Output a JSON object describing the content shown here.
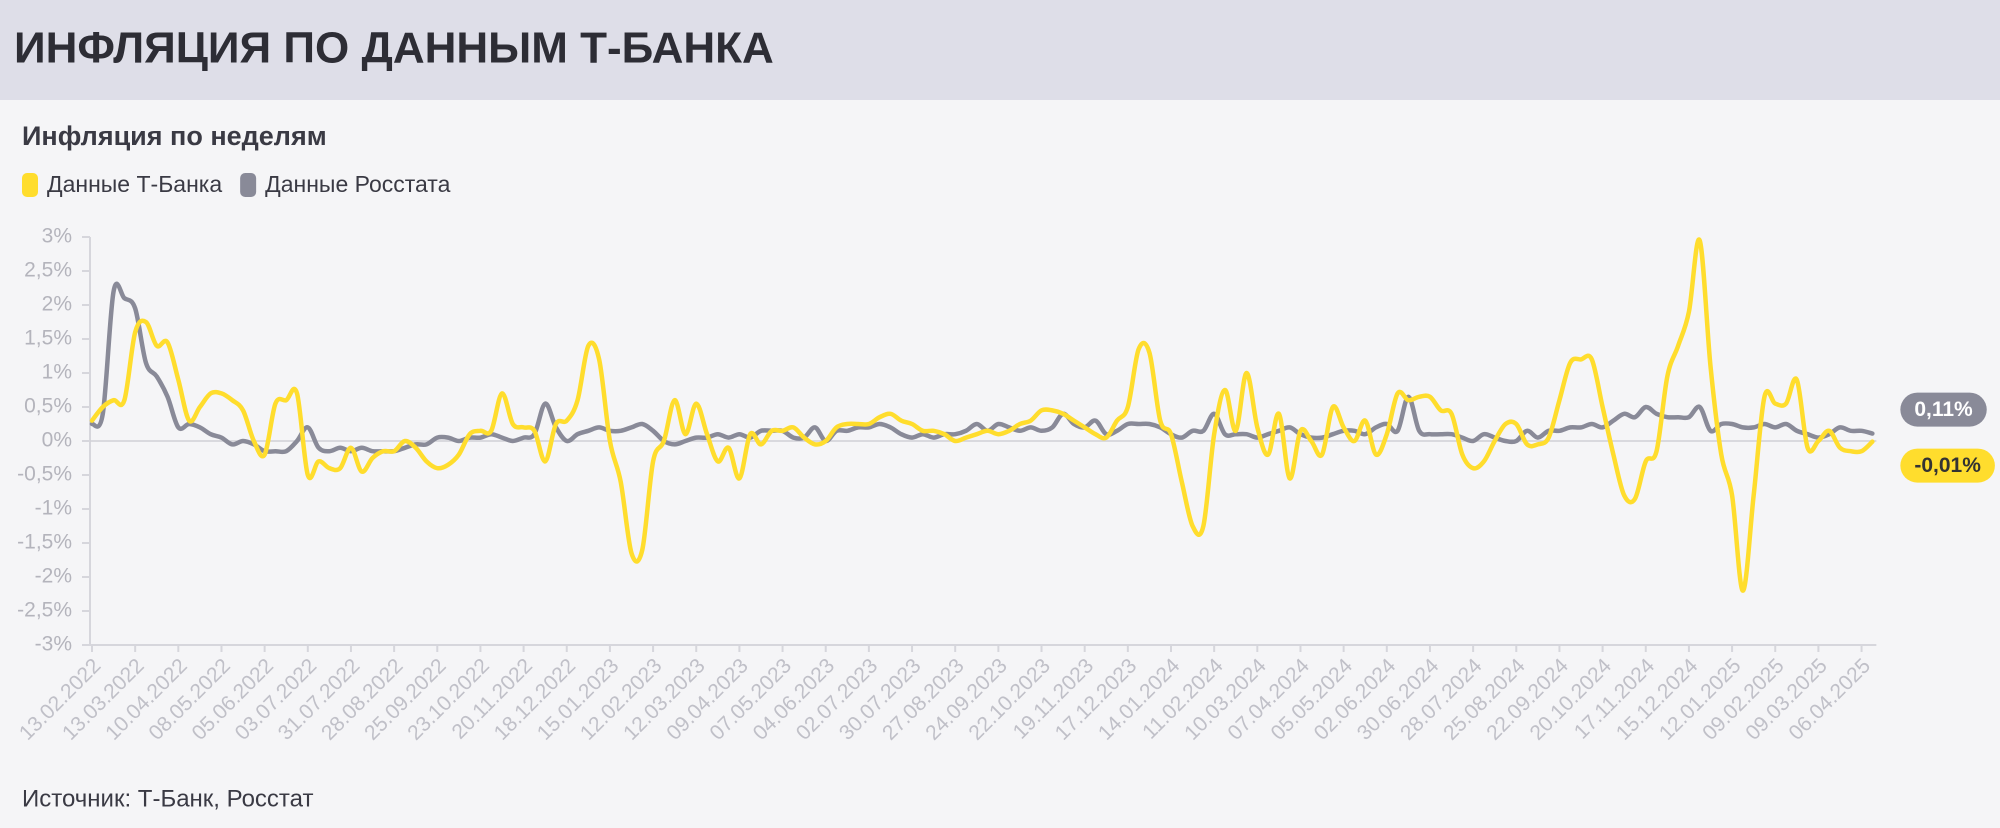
{
  "header": {
    "title": "ИНФЛЯЦИЯ ПО ДАННЫМ Т-БАНКА"
  },
  "chart_data": {
    "type": "line",
    "title": "Инфляция по неделям",
    "source": "Источник: Т-Банк, Росстат",
    "ylim": [
      -3,
      3
    ],
    "yticks": [
      {
        "value": -3,
        "label": "-3%"
      },
      {
        "value": -2.5,
        "label": "-2,5%"
      },
      {
        "value": -2,
        "label": "-2%"
      },
      {
        "value": -1.5,
        "label": "-1,5%"
      },
      {
        "value": -1,
        "label": "-1%"
      },
      {
        "value": -0.5,
        "label": "-0,5%"
      },
      {
        "value": 0,
        "label": "0%"
      },
      {
        "value": 0.5,
        "label": "0,5%"
      },
      {
        "value": 1,
        "label": "1%"
      },
      {
        "value": 1.5,
        "label": "1,5%"
      },
      {
        "value": 2,
        "label": "2%"
      },
      {
        "value": 2.5,
        "label": "2,5%"
      },
      {
        "value": 3,
        "label": "3%"
      }
    ],
    "grid": false,
    "legend": "top-left",
    "categories": [
      "13.02.2022",
      null,
      null,
      null,
      "13.03.2022",
      null,
      null,
      null,
      "10.04.2022",
      null,
      null,
      null,
      "08.05.2022",
      null,
      null,
      null,
      "05.06.2022",
      null,
      null,
      null,
      "03.07.2022",
      null,
      null,
      null,
      "31.07.2022",
      null,
      null,
      null,
      "28.08.2022",
      null,
      null,
      null,
      "25.09.2022",
      null,
      null,
      null,
      "23.10.2022",
      null,
      null,
      null,
      "20.11.2022",
      null,
      null,
      null,
      "18.12.2022",
      null,
      null,
      null,
      "15.01.2023",
      null,
      null,
      null,
      "12.02.2023",
      null,
      null,
      null,
      "12.03.2023",
      null,
      null,
      null,
      "09.04.2023",
      null,
      null,
      null,
      "07.05.2023",
      null,
      null,
      null,
      "04.06.2023",
      null,
      null,
      null,
      "02.07.2023",
      null,
      null,
      null,
      "30.07.2023",
      null,
      null,
      null,
      "27.08.2023",
      null,
      null,
      null,
      "24.09.2023",
      null,
      null,
      null,
      "22.10.2023",
      null,
      null,
      null,
      "19.11.2023",
      null,
      null,
      null,
      "17.12.2023",
      null,
      null,
      null,
      "14.01.2024",
      null,
      null,
      null,
      "11.02.2024",
      null,
      null,
      null,
      "10.03.2024",
      null,
      null,
      null,
      "07.04.2024",
      null,
      null,
      null,
      "05.05.2024",
      null,
      null,
      null,
      "02.06.2024",
      null,
      null,
      null,
      "30.06.2024",
      null,
      null,
      null,
      "28.07.2024",
      null,
      null,
      null,
      "25.08.2024",
      null,
      null,
      null,
      "22.09.2024",
      null,
      null,
      null,
      "20.10.2024",
      null,
      null,
      null,
      "17.11.2024",
      null,
      null,
      null,
      "15.12.2024",
      null,
      null,
      null,
      "12.01.2025",
      null,
      null,
      null,
      "09.02.2025",
      null,
      null,
      null,
      "09.03.2025",
      null,
      null,
      null,
      "06.04.2025",
      null
    ],
    "series": [
      {
        "name": "Данные Т-Банка",
        "color": "#ffdd2d",
        "label_text_color": "#333333",
        "values": [
          0.3,
          0.5,
          0.6,
          0.6,
          1.6,
          1.75,
          1.4,
          1.45,
          0.9,
          0.3,
          0.5,
          0.7,
          0.7,
          0.6,
          0.45,
          0,
          -0.2,
          0.55,
          0.6,
          0.7,
          -0.5,
          -0.3,
          -0.4,
          -0.4,
          -0.1,
          -0.45,
          -0.25,
          -0.15,
          -0.15,
          0,
          -0.1,
          -0.3,
          -0.4,
          -0.35,
          -0.2,
          0.1,
          0.15,
          0.15,
          0.7,
          0.25,
          0.2,
          0.15,
          -0.3,
          0.25,
          0.3,
          0.6,
          1.4,
          1.2,
          0,
          -0.6,
          -1.65,
          -1.6,
          -0.3,
          0,
          0.6,
          0.1,
          0.55,
          0.1,
          -0.3,
          -0.1,
          -0.55,
          0.1,
          -0.05,
          0.15,
          0.15,
          0.2,
          0.05,
          -0.05,
          0,
          0.2,
          0.25,
          0.25,
          0.25,
          0.35,
          0.4,
          0.3,
          0.25,
          0.15,
          0.15,
          0.1,
          0,
          0.05,
          0.1,
          0.15,
          0.1,
          0.15,
          0.25,
          0.3,
          0.45,
          0.45,
          0.4,
          0.3,
          0.2,
          0.1,
          0.05,
          0.3,
          0.5,
          1.35,
          1.3,
          0.3,
          0.1,
          -0.6,
          -1.25,
          -1.25,
          0.1,
          0.75,
          0.15,
          1,
          0.2,
          -0.2,
          0.4,
          -0.55,
          0.15,
          0,
          -0.2,
          0.5,
          0.2,
          0,
          0.3,
          -0.2,
          0.1,
          0.7,
          0.6,
          0.65,
          0.65,
          0.45,
          0.4,
          -0.2,
          -0.4,
          -0.3,
          0,
          0.25,
          0.25,
          -0.05,
          -0.05,
          0.05,
          0.6,
          1.15,
          1.2,
          1.2,
          0.5,
          -0.2,
          -0.8,
          -0.85,
          -0.3,
          -0.15,
          0.95,
          1.4,
          1.9,
          2.95,
          1.1,
          -0.2,
          -0.8,
          -2.2,
          -0.8,
          0.65,
          0.55,
          0.55,
          0.9,
          -0.1,
          0,
          0.15,
          -0.1,
          -0.15,
          -0.15,
          -0.01
        ],
        "value_labels": [
          null,
          null,
          null,
          null,
          null,
          null,
          null,
          null,
          null,
          null,
          null,
          null,
          null,
          null,
          null,
          null,
          null,
          null,
          null,
          null,
          null,
          null,
          null,
          null,
          null,
          null,
          null,
          null,
          null,
          null,
          null,
          null,
          null,
          null,
          null,
          null,
          null,
          null,
          null,
          null,
          null,
          null,
          null,
          null,
          null,
          null,
          null,
          null,
          null,
          null,
          null,
          null,
          null,
          null,
          null,
          null,
          null,
          null,
          null,
          null,
          null,
          null,
          null,
          null,
          null,
          null,
          null,
          null,
          null,
          null,
          null,
          null,
          null,
          null,
          null,
          null,
          null,
          null,
          null,
          null,
          null,
          null,
          null,
          null,
          null,
          null,
          null,
          null,
          null,
          null,
          null,
          null,
          null,
          null,
          null,
          null,
          null,
          null,
          null,
          null,
          null,
          null,
          null,
          null,
          null,
          null,
          null,
          null,
          null,
          null,
          null,
          null,
          null,
          null,
          null,
          null,
          null,
          null,
          null,
          null,
          null,
          null,
          null,
          null,
          null,
          null,
          null,
          null,
          null,
          null,
          null,
          null,
          null,
          null,
          null,
          null,
          null,
          null,
          null,
          null,
          null,
          null,
          null,
          null,
          null,
          null,
          null,
          null,
          null,
          null,
          null,
          null,
          null,
          null,
          null,
          null,
          null,
          null,
          null,
          null,
          null,
          null,
          null,
          null,
          null,
          "-0,01%"
        ]
      },
      {
        "name": "Данные Росстата",
        "color": "#898a98",
        "label_text_color": "#ffffff",
        "values": [
          0.25,
          0.4,
          2.2,
          2.1,
          1.95,
          1.15,
          0.95,
          0.65,
          0.2,
          0.25,
          0.2,
          0.1,
          0.05,
          -0.05,
          0,
          -0.05,
          -0.15,
          -0.15,
          -0.15,
          0,
          0.2,
          -0.1,
          -0.15,
          -0.1,
          -0.15,
          -0.1,
          -0.15,
          -0.15,
          -0.15,
          -0.1,
          -0.05,
          -0.05,
          0.05,
          0.05,
          0,
          0.05,
          0.05,
          0.1,
          0.05,
          0,
          0.05,
          0.1,
          0.55,
          0.2,
          0,
          0.1,
          0.15,
          0.2,
          0.15,
          0.15,
          0.2,
          0.25,
          0.15,
          0,
          -0.05,
          0,
          0.05,
          0.05,
          0.1,
          0.05,
          0.1,
          0.05,
          0.15,
          0.15,
          0.15,
          0.05,
          0.05,
          0.2,
          0,
          0.15,
          0.15,
          0.2,
          0.2,
          0.25,
          0.2,
          0.1,
          0.05,
          0.1,
          0.05,
          0.1,
          0.1,
          0.15,
          0.25,
          0.15,
          0.25,
          0.2,
          0.15,
          0.2,
          0.15,
          0.2,
          0.4,
          0.25,
          0.2,
          0.3,
          0.1,
          0.15,
          0.25,
          0.25,
          0.25,
          0.2,
          0.1,
          0.05,
          0.15,
          0.15,
          0.4,
          0.1,
          0.1,
          0.1,
          0.05,
          0.1,
          0.15,
          0.2,
          0.1,
          0.05,
          0.05,
          0.1,
          0.15,
          0.15,
          0.1,
          0.2,
          0.25,
          0.15,
          0.65,
          0.15,
          0.1,
          0.1,
          0.1,
          0.05,
          0,
          0.1,
          0.05,
          0,
          0,
          0.15,
          0.05,
          0.15,
          0.15,
          0.2,
          0.2,
          0.25,
          0.2,
          0.3,
          0.4,
          0.35,
          0.5,
          0.4,
          0.35,
          0.35,
          0.35,
          0.5,
          0.15,
          0.25,
          0.25,
          0.2,
          0.2,
          0.25,
          0.2,
          0.25,
          0.15,
          0.1,
          0.05,
          0.1,
          0.2,
          0.15,
          0.15,
          0.11
        ],
        "value_labels": [
          null,
          null,
          null,
          null,
          null,
          null,
          null,
          null,
          null,
          null,
          null,
          null,
          null,
          null,
          null,
          null,
          null,
          null,
          null,
          null,
          null,
          null,
          null,
          null,
          null,
          null,
          null,
          null,
          null,
          null,
          null,
          null,
          null,
          null,
          null,
          null,
          null,
          null,
          null,
          null,
          null,
          null,
          null,
          null,
          null,
          null,
          null,
          null,
          null,
          null,
          null,
          null,
          null,
          null,
          null,
          null,
          null,
          null,
          null,
          null,
          null,
          null,
          null,
          null,
          null,
          null,
          null,
          null,
          null,
          null,
          null,
          null,
          null,
          null,
          null,
          null,
          null,
          null,
          null,
          null,
          null,
          null,
          null,
          null,
          null,
          null,
          null,
          null,
          null,
          null,
          null,
          null,
          null,
          null,
          null,
          null,
          null,
          null,
          null,
          null,
          null,
          null,
          null,
          null,
          null,
          null,
          null,
          null,
          null,
          null,
          null,
          null,
          null,
          null,
          null,
          null,
          null,
          null,
          null,
          null,
          null,
          null,
          null,
          null,
          null,
          null,
          null,
          null,
          null,
          null,
          null,
          null,
          null,
          null,
          null,
          null,
          null,
          null,
          null,
          null,
          null,
          null,
          null,
          null,
          null,
          null,
          null,
          null,
          null,
          null,
          null,
          null,
          null,
          null,
          null,
          null,
          null,
          null,
          null,
          null,
          null,
          null,
          null,
          null,
          null,
          "0,11%"
        ]
      }
    ]
  }
}
